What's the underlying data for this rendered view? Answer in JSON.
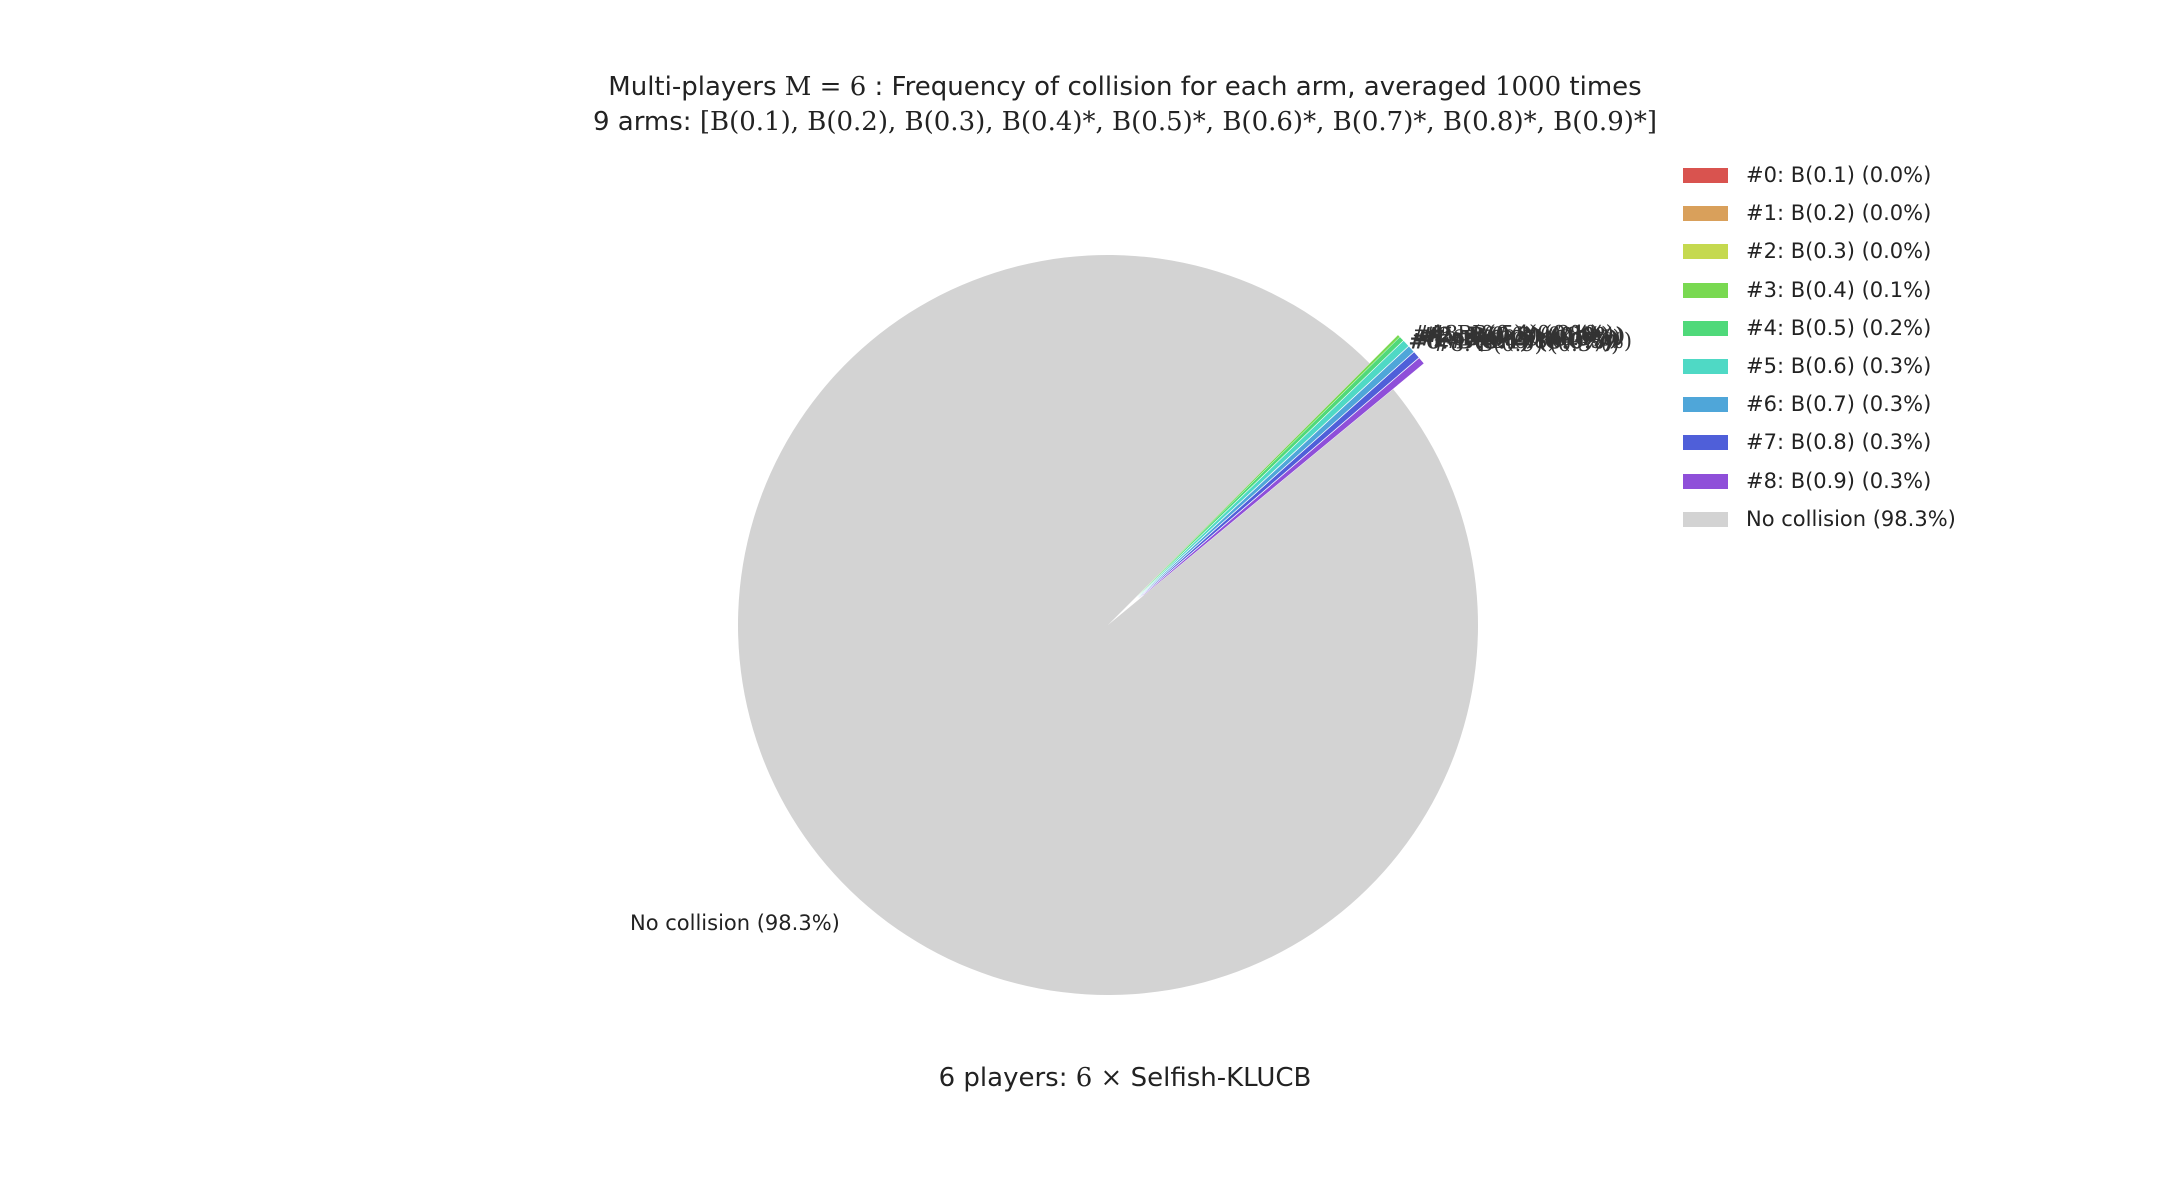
{
  "chart_data": {
    "type": "pie",
    "title_line1": "Multi-players M = 6 : Frequency of collision for each arm, averaged 1000 times",
    "title_line2": "9 arms: [B(0.1), B(0.2), B(0.3), B(0.4)*, B(0.5)*, B(0.6)*, B(0.7)*, B(0.8)*, B(0.9)*]",
    "xlabel": "6 players: 6 × Selfish-KLUCB",
    "slices": [
      {
        "label": "#0: B(0.1) (0.0%)",
        "value": 0.0,
        "color": "#d9534f"
      },
      {
        "label": "#1: B(0.2) (0.0%)",
        "value": 0.0,
        "color": "#d9a05b"
      },
      {
        "label": "#2: B(0.3) (0.0%)",
        "value": 0.0,
        "color": "#c5d94f"
      },
      {
        "label": "#3: B(0.4) (0.1%)",
        "value": 0.1,
        "color": "#79d951"
      },
      {
        "label": "#4: B(0.5) (0.2%)",
        "value": 0.2,
        "color": "#4fd97a"
      },
      {
        "label": "#5: B(0.6) (0.3%)",
        "value": 0.3,
        "color": "#4fd9c5"
      },
      {
        "label": "#6: B(0.7) (0.3%)",
        "value": 0.3,
        "color": "#4fa6d9"
      },
      {
        "label": "#7: B(0.8) (0.3%)",
        "value": 0.3,
        "color": "#4f5fd9"
      },
      {
        "label": "#8: B(0.9) (0.3%)",
        "value": 0.3,
        "color": "#8f4fd9"
      },
      {
        "label": "No collision (98.3%)",
        "value": 98.3,
        "color": "#d3d3d3"
      }
    ],
    "legend_position": "top-right"
  },
  "title": {
    "line1_prefix": "Multi-players ",
    "line1_math": "M = 6",
    "line1_suffix": " : Frequency of collision for each arm, averaged ",
    "line1_math2": "1000",
    "line1_end": " times",
    "line2_prefix": "9 arms: ",
    "line2_math": "[B(0.1), B(0.2), B(0.3), B(0.4)*, B(0.5)*, B(0.6)*, B(0.7)*, B(0.8)*, B(0.9)*]"
  },
  "xlabel": {
    "prefix": "6 players: ",
    "math": "6 ×",
    "suffix": " Selfish-KLUCB"
  },
  "no_collision_pie_label": "No collision (98.3%)"
}
